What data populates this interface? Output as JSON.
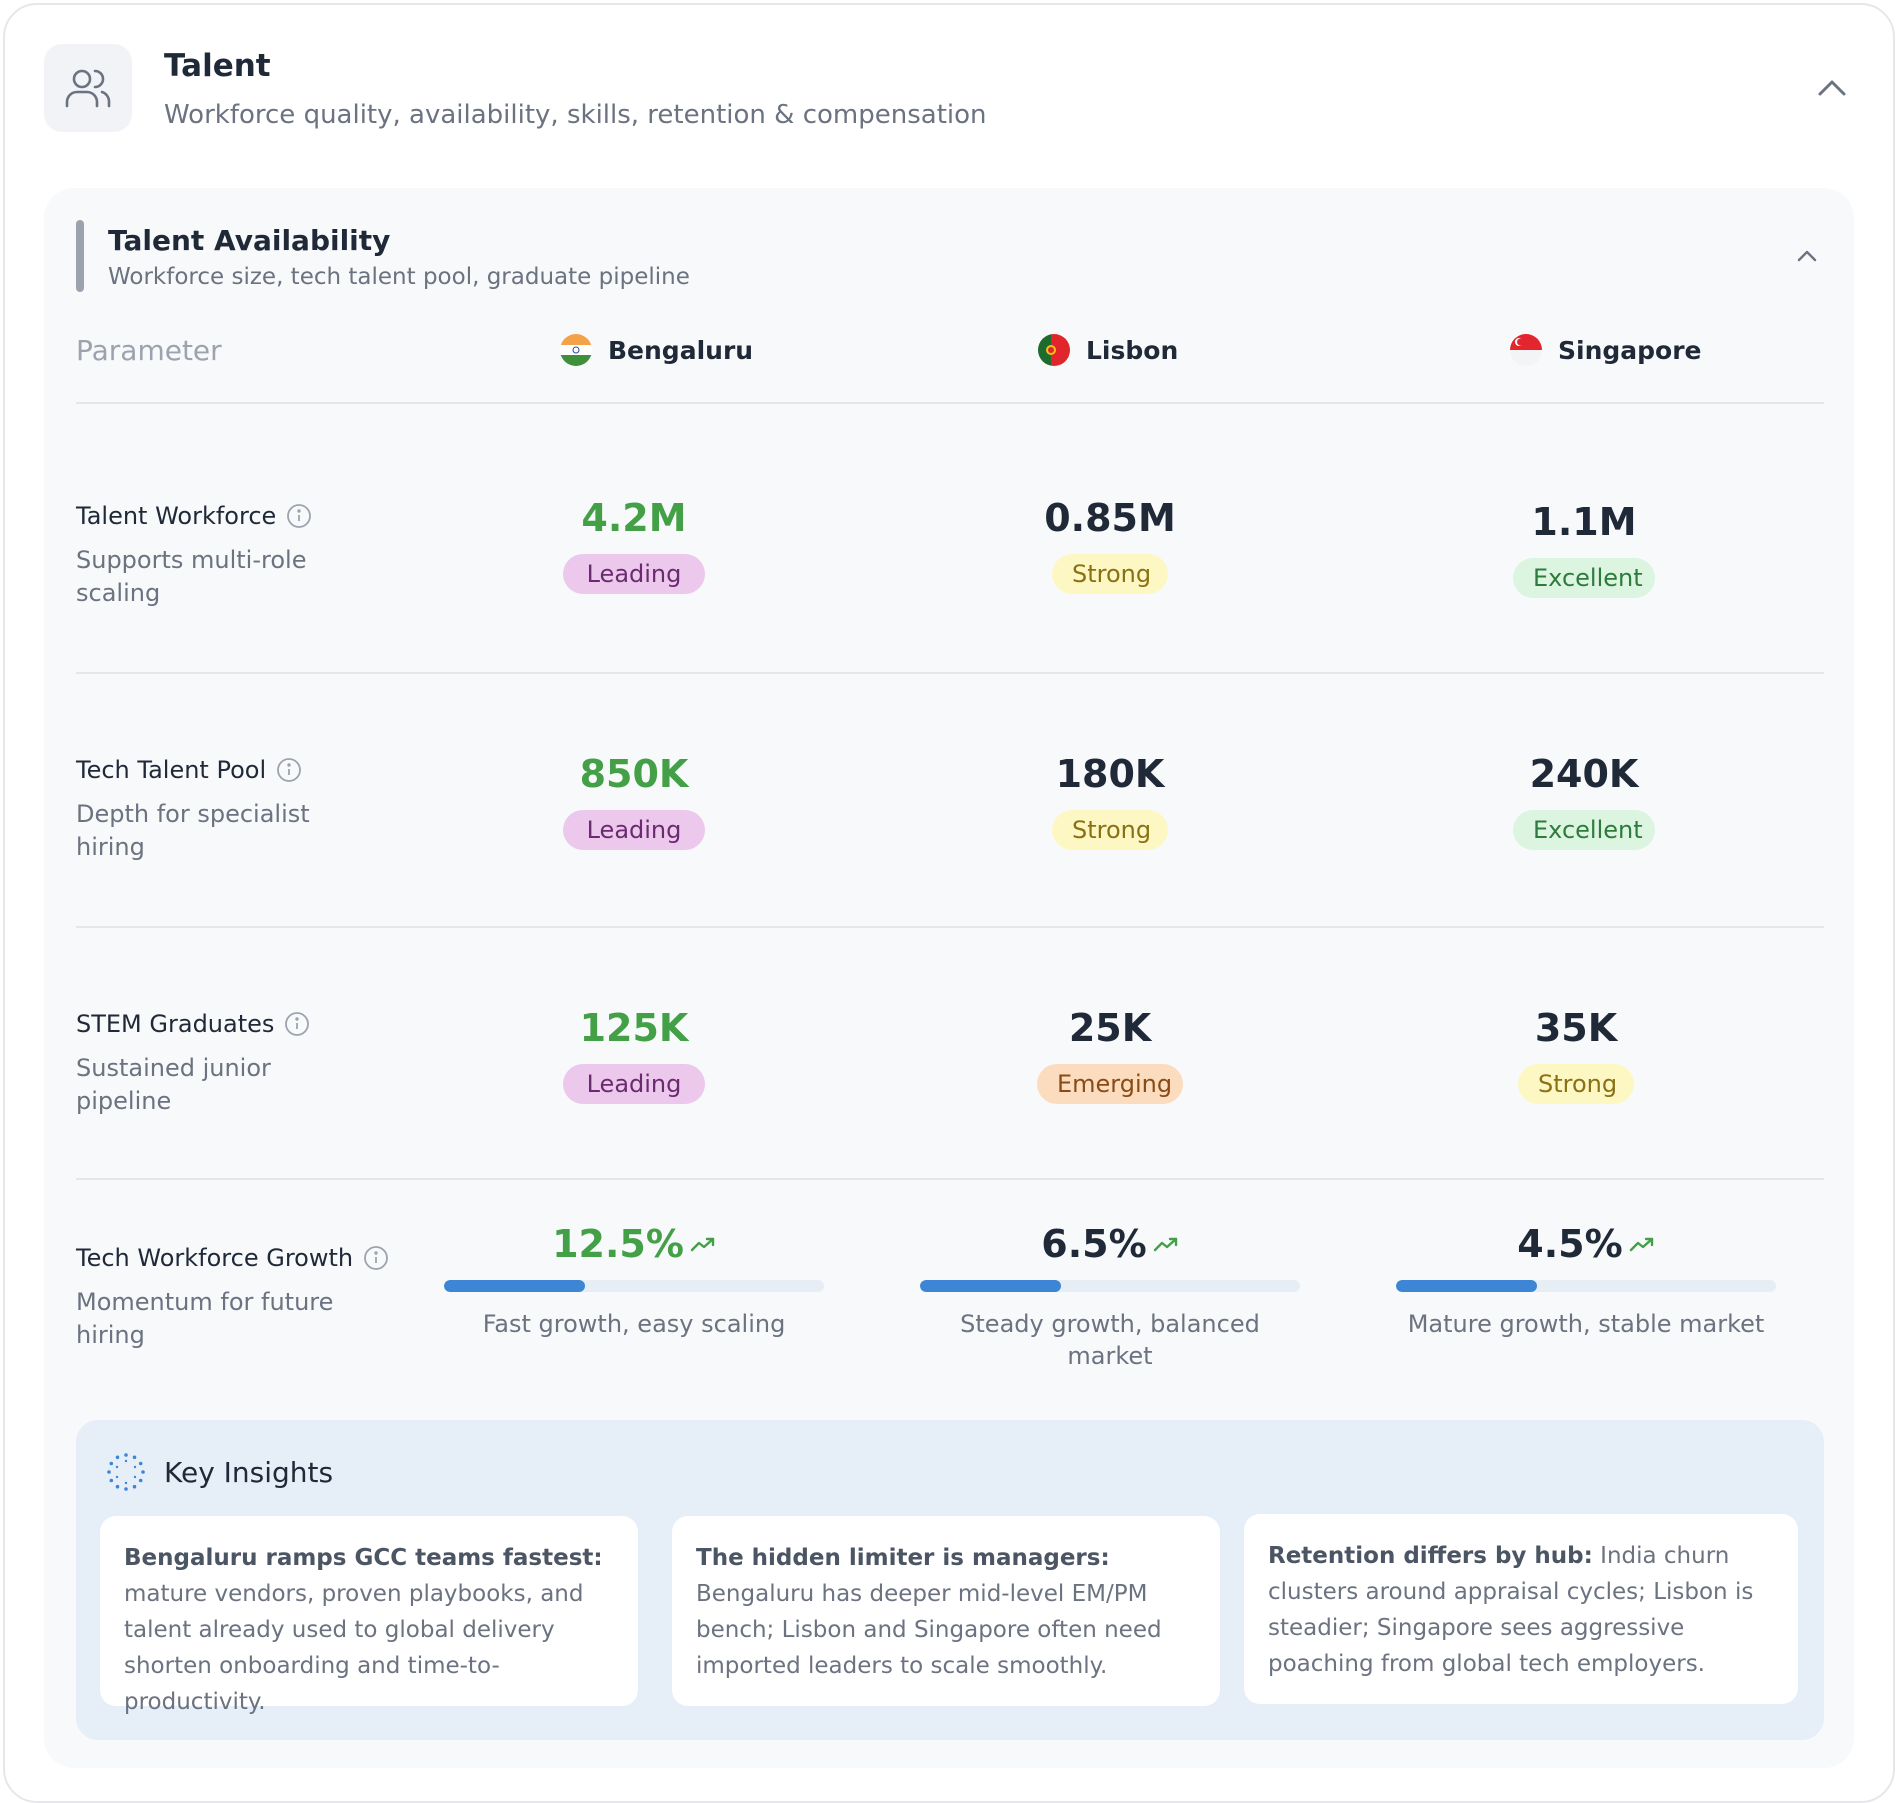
{
  "header": {
    "title": "Talent",
    "subtitle": "Workforce quality, availability, skills, retention & compensation",
    "icon": "users-icon"
  },
  "section": {
    "title": "Talent Availability",
    "subtitle": "Workforce size, tech talent pool, graduate pipeline"
  },
  "table": {
    "param_header": "Parameter",
    "cities": [
      "Bengaluru",
      "Lisbon",
      "Singapore"
    ],
    "rows": [
      {
        "label": "Talent Workforce",
        "desc": "Supports multi-role scaling",
        "cells": [
          {
            "value": "4.2M",
            "badge": "Leading"
          },
          {
            "value": "0.85M",
            "badge": "Strong"
          },
          {
            "value": "1.1M",
            "badge": "Excellent"
          }
        ]
      },
      {
        "label": "Tech Talent Pool",
        "desc": "Depth for specialist hiring",
        "cells": [
          {
            "value": "850K",
            "badge": "Leading"
          },
          {
            "value": "180K",
            "badge": "Strong"
          },
          {
            "value": "240K",
            "badge": "Excellent"
          }
        ]
      },
      {
        "label": "STEM Graduates",
        "desc": "Sustained junior pipeline",
        "cells": [
          {
            "value": "125K",
            "badge": "Leading"
          },
          {
            "value": "25K",
            "badge": "Emerging"
          },
          {
            "value": "35K",
            "badge": "Strong"
          }
        ]
      },
      {
        "label": "Tech Workforce Growth",
        "desc": "Momentum for future hiring",
        "cells": [
          {
            "value": "12.5%",
            "progress": 0.37,
            "note": "Fast growth, easy scaling"
          },
          {
            "value": "6.5%",
            "progress": 0.37,
            "note": "Steady growth, balanced market"
          },
          {
            "value": "4.5%",
            "progress": 0.37,
            "note": "Mature growth, stable market"
          }
        ]
      }
    ]
  },
  "insights": {
    "title": "Key Insights",
    "cards": [
      {
        "lead": "Bengaluru ramps GCC teams fastest:",
        "text": " mature vendors, proven playbooks, and talent already used to global delivery shorten onboarding and time-to-productivity."
      },
      {
        "lead": "The hidden limiter is managers:",
        "text": " Bengaluru has deeper mid-level EM/PM bench; Lisbon and Singapore often need imported leaders to scale smoothly."
      },
      {
        "lead": "Retention differs by hub:",
        "text": " India churn clusters around appraisal cycles; Lisbon is steadier; Singapore sees aggressive poaching from global tech employers."
      }
    ]
  },
  "colors": {
    "leading_value": "#43a047",
    "progress_fill": "#3d86d6",
    "badge_leading": "#ebc8ec",
    "badge_strong": "#fdf7c3",
    "badge_excellent": "#dcf5e1",
    "badge_emerging": "#fbdcbf"
  }
}
